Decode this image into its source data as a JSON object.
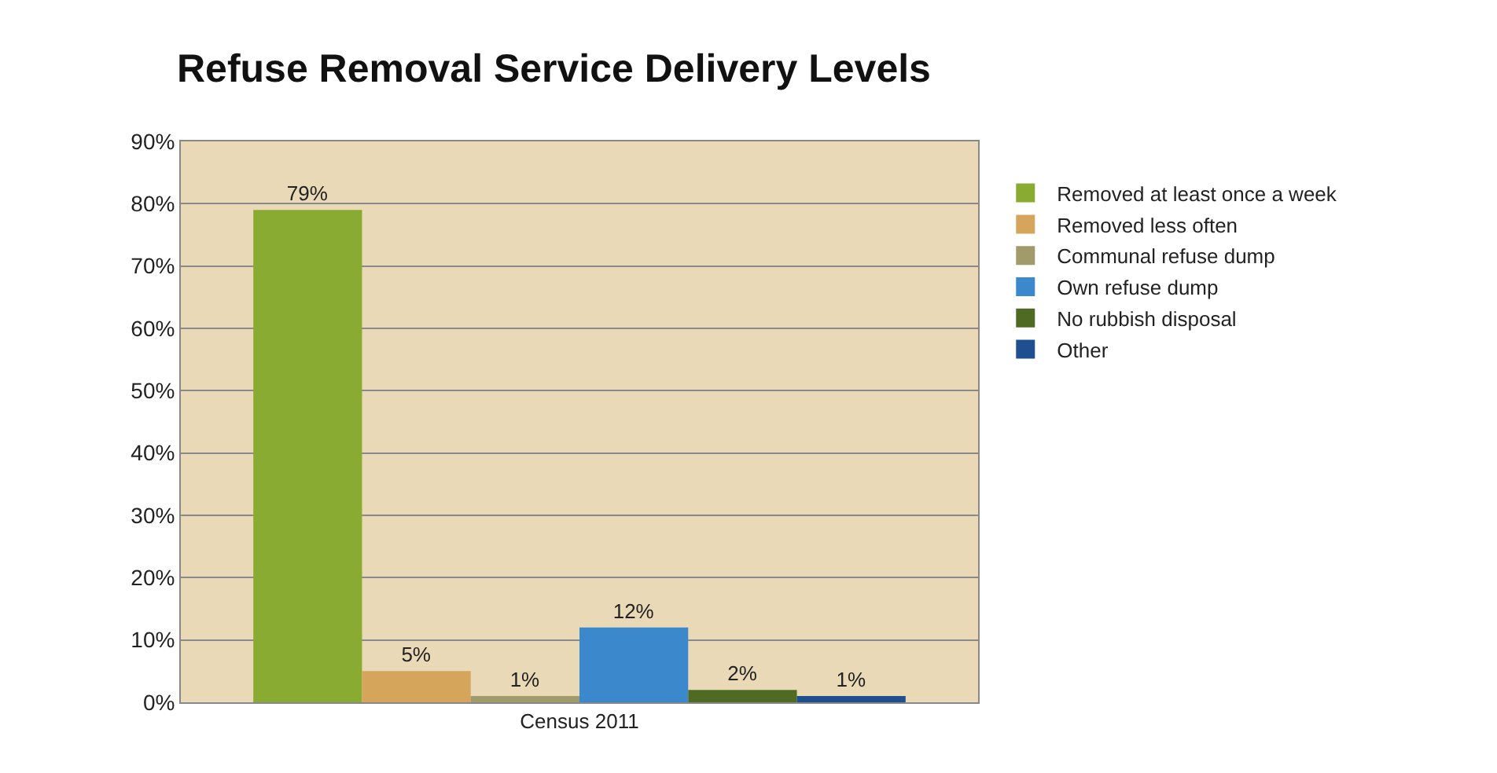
{
  "chart_data": {
    "type": "bar",
    "title": "Refuse Removal Service Delivery Levels",
    "categories": [
      "Census 2011"
    ],
    "series": [
      {
        "name": "Removed at least once a week",
        "color": "#8aab32",
        "values": [
          79
        ],
        "value_labels": [
          "79%"
        ]
      },
      {
        "name": "Removed less often",
        "color": "#d5a55c",
        "values": [
          5
        ],
        "value_labels": [
          "5%"
        ]
      },
      {
        "name": "Communal refuse dump",
        "color": "#a19b6b",
        "values": [
          1
        ],
        "value_labels": [
          "1%"
        ]
      },
      {
        "name": "Own refuse dump",
        "color": "#3b88cc",
        "values": [
          12
        ],
        "value_labels": [
          "12%"
        ]
      },
      {
        "name": "No rubbish disposal",
        "color": "#4f6b23",
        "values": [
          2
        ],
        "value_labels": [
          "2%"
        ]
      },
      {
        "name": "Other",
        "color": "#1f4f8e",
        "values": [
          1
        ],
        "value_labels": [
          "1%"
        ]
      }
    ],
    "ylim": [
      0,
      90
    ],
    "yticks": [
      {
        "value": 0,
        "label": "0%"
      },
      {
        "value": 10,
        "label": "10%"
      },
      {
        "value": 20,
        "label": "20%"
      },
      {
        "value": 30,
        "label": "30%"
      },
      {
        "value": 40,
        "label": "40%"
      },
      {
        "value": 50,
        "label": "50%"
      },
      {
        "value": 60,
        "label": "60%"
      },
      {
        "value": 70,
        "label": "70%"
      },
      {
        "value": 80,
        "label": "80%"
      },
      {
        "value": 90,
        "label": "90%"
      }
    ],
    "grid": "y",
    "legend": "right"
  }
}
